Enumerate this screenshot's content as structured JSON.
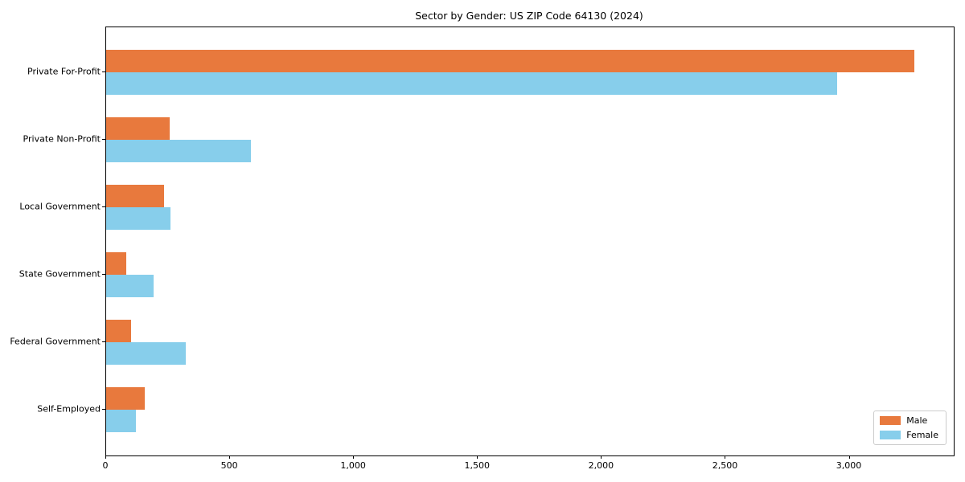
{
  "title": "Sector by Gender: US ZIP Code 64130 (2024)",
  "chart_data": {
    "type": "bar",
    "orientation": "horizontal",
    "title": "Sector by Gender: US ZIP Code 64130 (2024)",
    "categories": [
      "Private For-Profit",
      "Private Non-Profit",
      "Local Government",
      "State Government",
      "Federal Government",
      "Self-Employed"
    ],
    "series": [
      {
        "name": "Male",
        "color": "#e8793d",
        "values": [
          3260,
          255,
          235,
          80,
          100,
          155
        ]
      },
      {
        "name": "Female",
        "color": "#87ceeb",
        "values": [
          2950,
          585,
          260,
          190,
          320,
          120
        ]
      }
    ],
    "xlabel": "",
    "ylabel": "",
    "xlim": [
      0,
      3420
    ],
    "xticks": [
      0,
      500,
      1000,
      1500,
      2000,
      2500,
      3000
    ],
    "xtick_labels": [
      "0",
      "500",
      "1,000",
      "1,500",
      "2,000",
      "2,500",
      "3,000"
    ],
    "grid": false,
    "legend_position": "lower right",
    "legend_entries": [
      "Male",
      "Female"
    ]
  }
}
